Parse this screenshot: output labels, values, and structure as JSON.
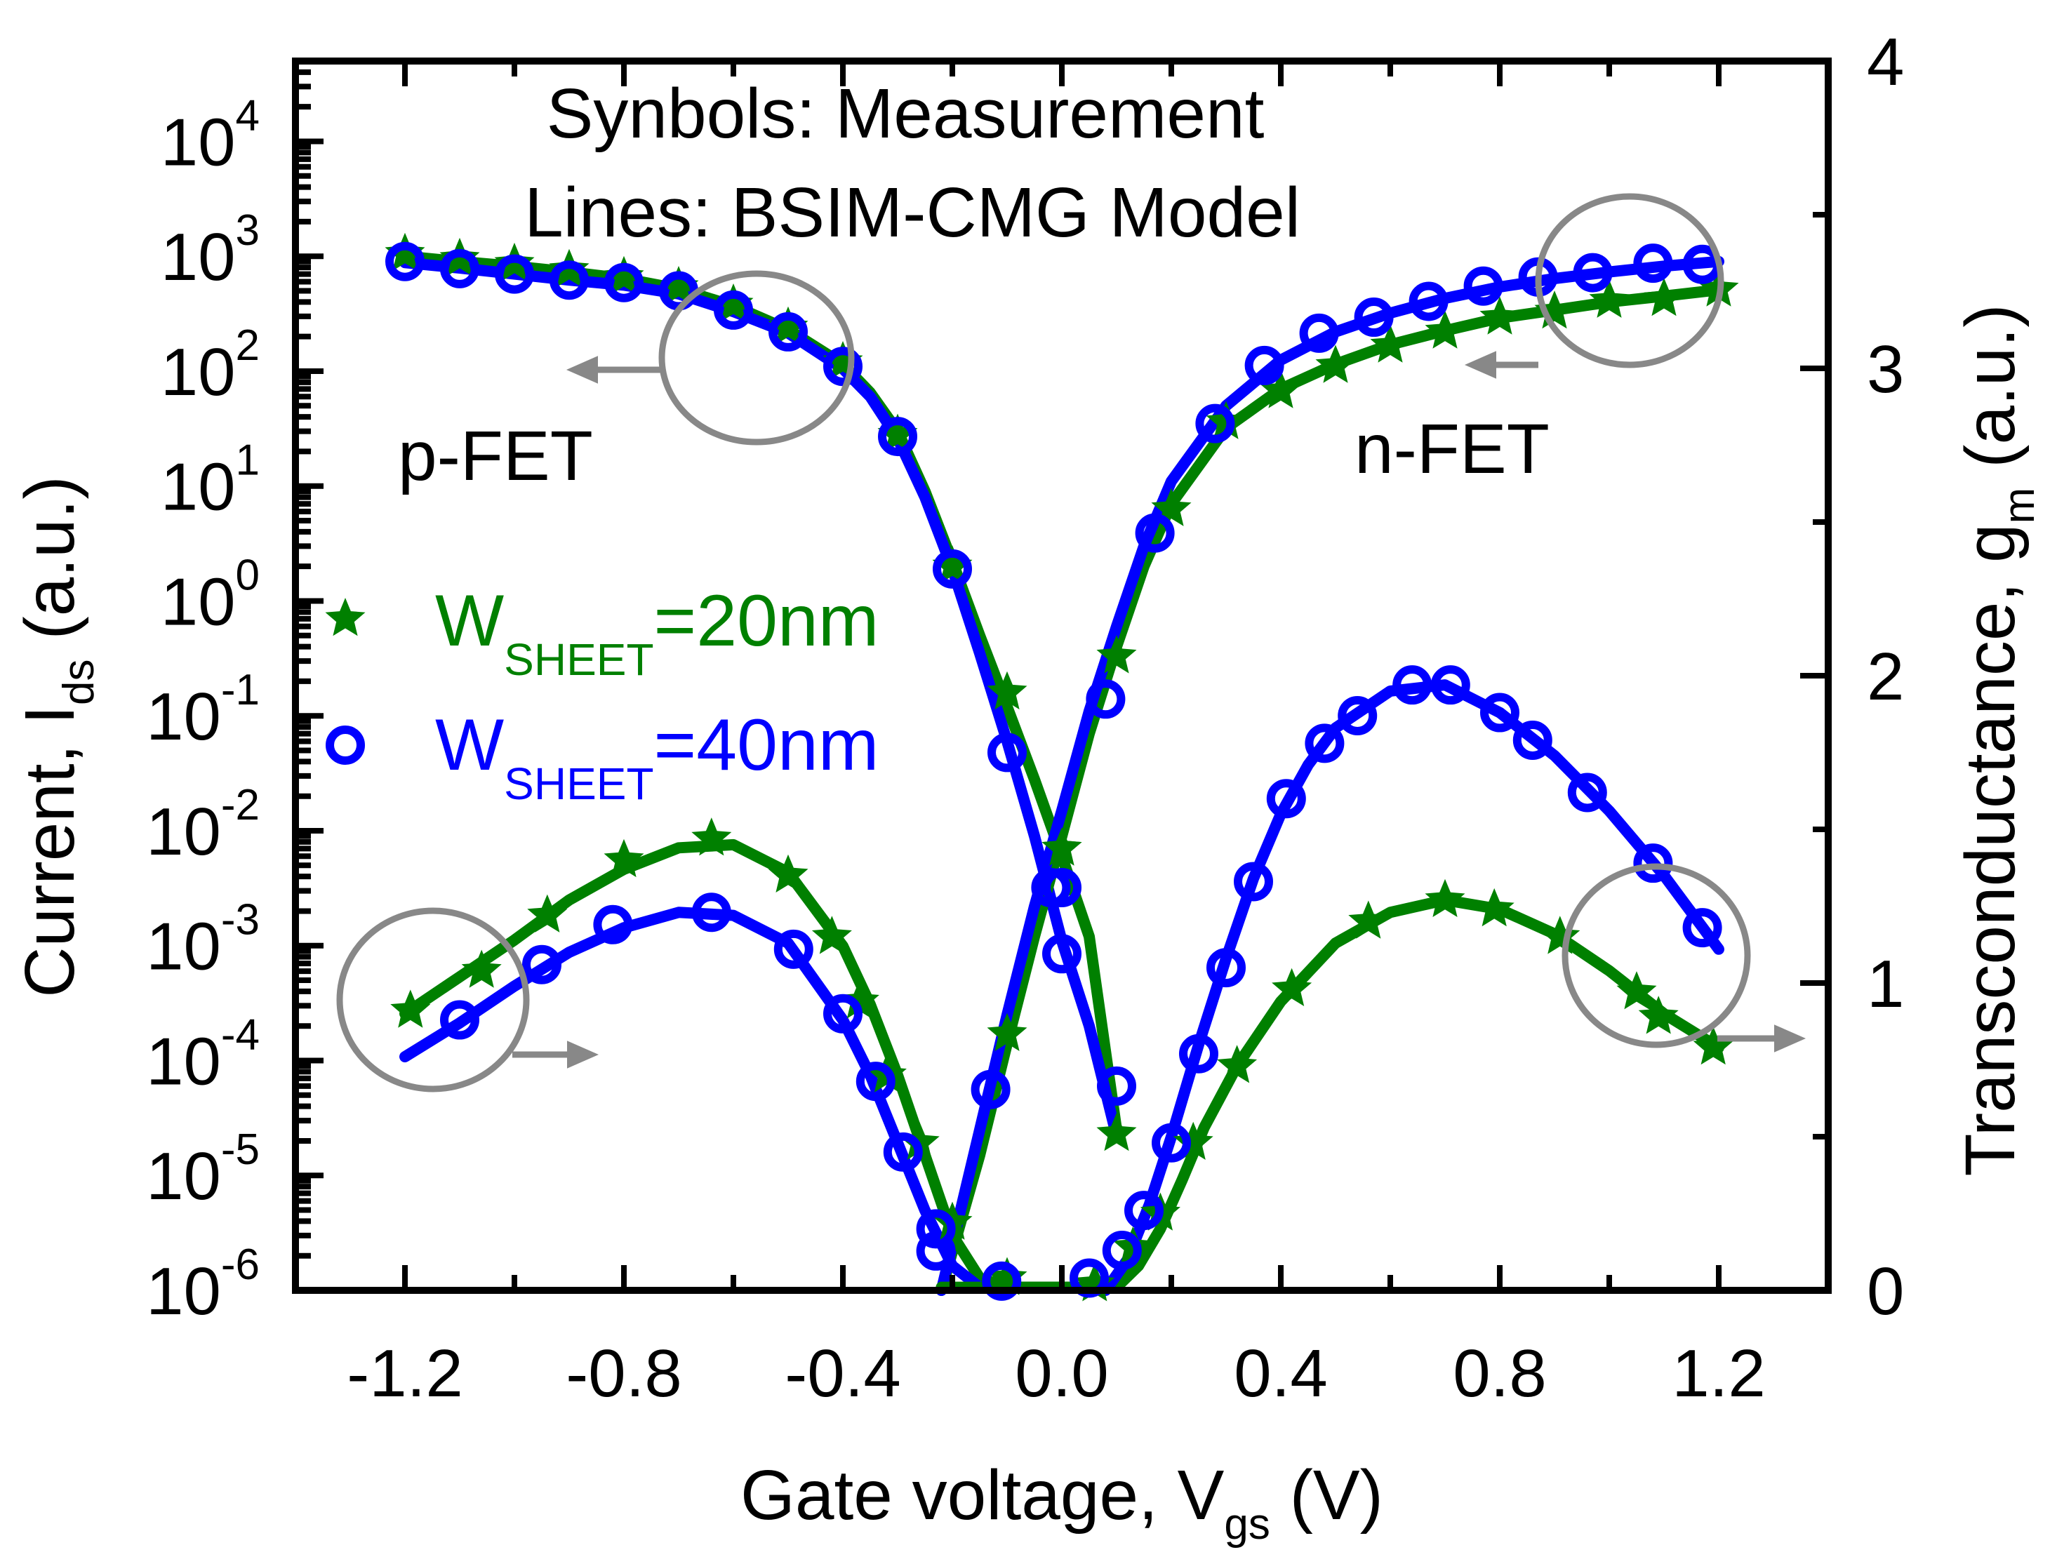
{
  "chart_data": {
    "type": "line",
    "title": "",
    "annotations": {
      "symbols_note": "Synbols: Measurement",
      "lines_note": "Lines: BSIM-CMG Model",
      "pfet_label": "p-FET",
      "nfet_label": "n-FET"
    },
    "xlabel": {
      "main": "Gate voltage, V",
      "sub": "gs",
      "tail": " (V)"
    },
    "ylabel_left": {
      "main": "Current, I",
      "sub": "ds",
      "tail": " (a.u.)"
    },
    "ylabel_right": {
      "main": "Transconductance, g",
      "sub": "m",
      "tail": " (a.u.)"
    },
    "xlim": [
      -1.4,
      1.4
    ],
    "ylim_left": [
      1e-06,
      50000.0
    ],
    "yscale_left": "log",
    "ylim_right": [
      0,
      4
    ],
    "yscale_right": "linear",
    "grid": false,
    "legend_position": "center-left",
    "x_ticks": [
      -1.2,
      -0.8,
      -0.4,
      0.0,
      0.4,
      0.8,
      1.2
    ],
    "x_tick_labels": [
      "-1.2",
      "-0.8",
      "-0.4",
      "0.0",
      "0.4",
      "0.8",
      "1.2"
    ],
    "y_left_ticks": [
      {
        "base": "10",
        "exp": "-6",
        "value": 1e-06
      },
      {
        "base": "10",
        "exp": "-5",
        "value": 1e-05
      },
      {
        "base": "10",
        "exp": "-4",
        "value": 0.0001
      },
      {
        "base": "10",
        "exp": "-3",
        "value": 0.001
      },
      {
        "base": "10",
        "exp": "-2",
        "value": 0.01
      },
      {
        "base": "10",
        "exp": "-1",
        "value": 0.1
      },
      {
        "base": "10",
        "exp": "0",
        "value": 1
      },
      {
        "base": "10",
        "exp": "1",
        "value": 10
      },
      {
        "base": "10",
        "exp": "2",
        "value": 100
      },
      {
        "base": "10",
        "exp": "3",
        "value": 1000
      },
      {
        "base": "10",
        "exp": "4",
        "value": 10000
      }
    ],
    "y_right_ticks": [
      0,
      1,
      2,
      3,
      4
    ],
    "y_right_tick_labels": [
      "0",
      "1",
      "2",
      "3",
      "4"
    ],
    "legend": [
      {
        "name": "W",
        "sub": "SHEET",
        "value": "=20nm",
        "marker": "star",
        "color": "#008000"
      },
      {
        "name": "W",
        "sub": "SHEET",
        "value": "=40nm",
        "marker": "circle",
        "color": "#0000ff"
      }
    ],
    "colors": {
      "w20": "#008000",
      "w40": "#0000ff",
      "annotation": "#888888"
    },
    "series": [
      {
        "name": "W_SHEET=20nm p-FET Ids (measurement)",
        "axis": "left",
        "kind": "markers",
        "marker": "star",
        "color": "#008000",
        "x": [
          -1.2,
          -1.1,
          -1.0,
          -0.9,
          -0.8,
          -0.7,
          -0.6,
          -0.5,
          -0.4,
          -0.3,
          -0.2,
          -0.1,
          0.0,
          0.1
        ],
        "y": [
          1050,
          950,
          860,
          760,
          660,
          540,
          380,
          240,
          120,
          28,
          2.0,
          0.16,
          0.007,
          2.3e-05
        ]
      },
      {
        "name": "W_SHEET=40nm p-FET Ids (measurement)",
        "axis": "left",
        "kind": "markers",
        "marker": "circle",
        "color": "#0000ff",
        "x": [
          -1.2,
          -1.1,
          -1.0,
          -0.9,
          -0.8,
          -0.7,
          -0.6,
          -0.5,
          -0.4,
          -0.3,
          -0.2,
          -0.1,
          -0.02,
          0.0,
          0.1
        ],
        "y": [
          900,
          780,
          700,
          620,
          590,
          500,
          340,
          220,
          110,
          27,
          1.9,
          0.048,
          0.0032,
          0.00085,
          6e-05
        ]
      },
      {
        "name": "W_SHEET=20nm p-FET Ids (model)",
        "axis": "left",
        "kind": "line",
        "color": "#008000",
        "x": [
          -1.2,
          -1.1,
          -1.0,
          -0.9,
          -0.8,
          -0.7,
          -0.6,
          -0.5,
          -0.4,
          -0.35,
          -0.3,
          -0.25,
          -0.2,
          -0.15,
          -0.1,
          -0.05,
          0.0,
          0.05,
          0.1
        ],
        "y": [
          1000,
          900,
          820,
          730,
          640,
          520,
          370,
          230,
          115,
          65,
          30,
          9,
          2.2,
          0.5,
          0.12,
          0.028,
          0.006,
          0.0012,
          2.5e-05
        ]
      },
      {
        "name": "W_SHEET=40nm p-FET Ids (model)",
        "axis": "left",
        "kind": "line",
        "color": "#0000ff",
        "x": [
          -1.2,
          -1.1,
          -1.0,
          -0.9,
          -0.8,
          -0.7,
          -0.6,
          -0.5,
          -0.4,
          -0.35,
          -0.3,
          -0.25,
          -0.2,
          -0.15,
          -0.1,
          -0.05,
          0.0,
          0.05,
          0.1
        ],
        "y": [
          880,
          790,
          700,
          620,
          560,
          470,
          330,
          215,
          105,
          60,
          26,
          8,
          1.9,
          0.35,
          0.06,
          0.009,
          0.0011,
          0.0002,
          2.2e-05
        ]
      },
      {
        "name": "W_SHEET=20nm n-FET Ids (measurement)",
        "axis": "left",
        "kind": "markers",
        "marker": "star",
        "color": "#008000",
        "x": [
          -0.1,
          0.0,
          0.1,
          0.2,
          0.3,
          0.4,
          0.5,
          0.6,
          0.7,
          0.8,
          0.9,
          1.0,
          1.1,
          1.2
        ],
        "y": [
          0.00017,
          0.007,
          0.33,
          6.3,
          36,
          67,
          111,
          167,
          221,
          293,
          330,
          410,
          425,
          515
        ]
      },
      {
        "name": "W_SHEET=40nm n-FET Ids (measurement)",
        "axis": "left",
        "kind": "markers",
        "marker": "circle",
        "color": "#0000ff",
        "x": [
          -0.23,
          -0.13,
          0.0,
          0.08,
          0.17,
          0.28,
          0.37,
          0.47,
          0.57,
          0.67,
          0.77,
          0.87,
          0.97,
          1.08,
          1.17
        ],
        "y": [
          2.2e-06,
          5.6e-05,
          0.0032,
          0.14,
          3.9,
          35,
          112,
          214,
          295,
          405,
          550,
          660,
          720,
          870,
          850
        ]
      },
      {
        "name": "W_SHEET=20nm n-FET Ids (model)",
        "axis": "left",
        "kind": "line",
        "color": "#008000",
        "x": [
          -0.22,
          -0.15,
          -0.1,
          -0.05,
          0.0,
          0.05,
          0.1,
          0.15,
          0.2,
          0.3,
          0.4,
          0.5,
          0.6,
          0.7,
          0.8,
          0.9,
          1.0,
          1.1,
          1.2
        ],
        "y": [
          1e-06,
          1.5e-05,
          0.00014,
          0.0012,
          0.009,
          0.07,
          0.4,
          2.0,
          7,
          32,
          70,
          115,
          170,
          225,
          290,
          340,
          400,
          450,
          510
        ]
      },
      {
        "name": "W_SHEET=40nm n-FET Ids (model)",
        "axis": "left",
        "kind": "line",
        "color": "#0000ff",
        "x": [
          -0.22,
          -0.15,
          -0.1,
          -0.05,
          0.0,
          0.05,
          0.1,
          0.15,
          0.2,
          0.3,
          0.4,
          0.5,
          0.6,
          0.7,
          0.8,
          0.9,
          1.0,
          1.1,
          1.2
        ],
        "y": [
          1e-06,
          2.5e-05,
          0.00025,
          0.0022,
          0.015,
          0.11,
          0.6,
          3.0,
          11,
          50,
          125,
          220,
          320,
          430,
          540,
          640,
          730,
          820,
          900
        ]
      },
      {
        "name": "W_SHEET=20nm p-FET gm (measurement)",
        "axis": "right",
        "kind": "markers",
        "marker": "star",
        "color": "#008000",
        "x": [
          -1.19,
          -1.06,
          -0.94,
          -0.8,
          -0.64,
          -0.5,
          -0.42,
          -0.37,
          -0.32,
          -0.26,
          -0.2,
          -0.1
        ],
        "y": [
          0.91,
          1.04,
          1.22,
          1.4,
          1.47,
          1.35,
          1.15,
          0.94,
          0.7,
          0.48,
          0.22,
          0.04
        ]
      },
      {
        "name": "W_SHEET=40nm p-FET gm (measurement)",
        "axis": "right",
        "kind": "markers",
        "marker": "circle",
        "color": "#0000ff",
        "x": [
          -1.1,
          -0.95,
          -0.82,
          -0.64,
          -0.49,
          -0.4,
          -0.34,
          -0.29,
          -0.23,
          -0.11
        ],
        "y": [
          0.88,
          1.06,
          1.19,
          1.23,
          1.11,
          0.9,
          0.68,
          0.45,
          0.2,
          0.03
        ]
      },
      {
        "name": "W_SHEET=20nm p-FET gm (model)",
        "axis": "right",
        "kind": "line",
        "color": "#008000",
        "x": [
          -1.2,
          -1.1,
          -1.0,
          -0.9,
          -0.8,
          -0.7,
          -0.6,
          -0.5,
          -0.4,
          -0.35,
          -0.3,
          -0.25,
          -0.2,
          -0.15,
          -0.1,
          0.05
        ],
        "y": [
          0.9,
          1.02,
          1.14,
          1.27,
          1.37,
          1.44,
          1.45,
          1.36,
          1.12,
          0.93,
          0.7,
          0.44,
          0.18,
          0.04,
          0.01,
          0.01
        ]
      },
      {
        "name": "W_SHEET=40nm p-FET gm (model)",
        "axis": "right",
        "kind": "line",
        "color": "#0000ff",
        "x": [
          -1.2,
          -1.1,
          -1.0,
          -0.9,
          -0.8,
          -0.7,
          -0.6,
          -0.5,
          -0.4,
          -0.35,
          -0.3,
          -0.25,
          -0.2,
          -0.15,
          -0.1
        ],
        "y": [
          0.76,
          0.87,
          0.99,
          1.1,
          1.18,
          1.23,
          1.22,
          1.13,
          0.88,
          0.7,
          0.48,
          0.26,
          0.08,
          0.01,
          0.0
        ]
      },
      {
        "name": "W_SHEET=20nm n-FET gm (measurement)",
        "axis": "right",
        "kind": "markers",
        "marker": "star",
        "color": "#008000",
        "x": [
          0.06,
          0.13,
          0.18,
          0.24,
          0.32,
          0.42,
          0.56,
          0.7,
          0.79,
          0.91,
          1.05,
          1.09,
          1.19
        ],
        "y": [
          0.02,
          0.14,
          0.25,
          0.48,
          0.73,
          0.98,
          1.2,
          1.27,
          1.24,
          1.15,
          0.97,
          0.89,
          0.79
        ]
      },
      {
        "name": "W_SHEET=40nm n-FET gm (measurement)",
        "axis": "right",
        "kind": "markers",
        "marker": "circle",
        "color": "#0000ff",
        "x": [
          0.05,
          0.11,
          0.15,
          0.2,
          0.25,
          0.3,
          0.35,
          0.41,
          0.48,
          0.54,
          0.64,
          0.71,
          0.8,
          0.86,
          0.96,
          1.08,
          1.17
        ],
        "y": [
          0.04,
          0.13,
          0.26,
          0.48,
          0.77,
          1.05,
          1.33,
          1.6,
          1.78,
          1.87,
          1.97,
          1.97,
          1.88,
          1.79,
          1.62,
          1.39,
          1.18
        ]
      },
      {
        "name": "W_SHEET=20nm n-FET gm (model)",
        "axis": "right",
        "kind": "line",
        "color": "#008000",
        "x": [
          -0.22,
          0.1,
          0.14,
          0.18,
          0.22,
          0.26,
          0.32,
          0.4,
          0.5,
          0.6,
          0.7,
          0.8,
          0.9,
          1.0,
          1.1,
          1.2
        ],
        "y": [
          0.01,
          0.01,
          0.08,
          0.2,
          0.36,
          0.53,
          0.73,
          0.94,
          1.13,
          1.23,
          1.27,
          1.24,
          1.16,
          1.04,
          0.9,
          0.79
        ]
      },
      {
        "name": "W_SHEET=40nm n-FET gm (model)",
        "axis": "right",
        "kind": "line",
        "color": "#0000ff",
        "x": [
          0.08,
          0.12,
          0.16,
          0.2,
          0.25,
          0.3,
          0.35,
          0.4,
          0.45,
          0.5,
          0.6,
          0.7,
          0.8,
          0.9,
          1.0,
          1.1,
          1.2
        ],
        "y": [
          0.0,
          0.1,
          0.28,
          0.5,
          0.8,
          1.08,
          1.34,
          1.55,
          1.71,
          1.83,
          1.95,
          1.97,
          1.88,
          1.74,
          1.56,
          1.35,
          1.11
        ]
      }
    ]
  }
}
